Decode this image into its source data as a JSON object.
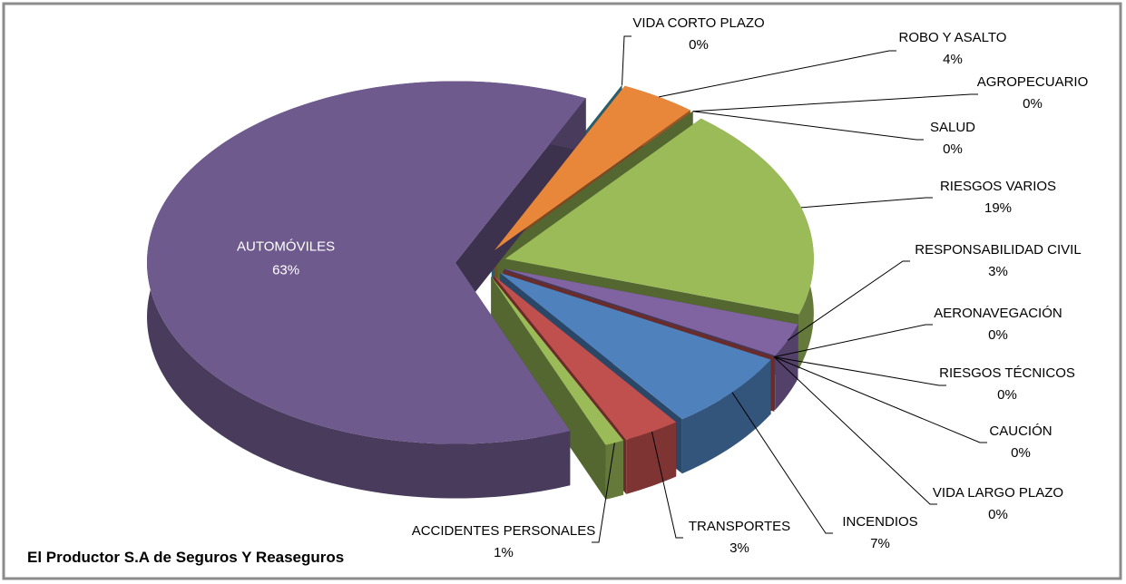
{
  "chart_data": {
    "type": "pie",
    "subtitle": "El Productor S.A de Seguros Y Reaseguros",
    "categories": [
      "VIDA CORTO PLAZO",
      "ROBO Y ASALTO",
      "AGROPECUARIO",
      "SALUD",
      "RIESGOS VARIOS",
      "RESPONSABILIDAD CIVIL",
      "AERONAVEGACIÓN",
      "RIESGOS TÉCNICOS",
      "CAUCIÓN",
      "VIDA LARGO PLAZO",
      "INCENDIOS",
      "TRANSPORTES",
      "ACCIDENTES PERSONALES",
      "AUTOMÓVILES"
    ],
    "values": [
      0,
      4,
      0,
      0,
      19,
      3,
      0,
      0,
      0,
      0,
      7,
      3,
      1,
      63
    ],
    "value_labels": [
      "0%",
      "4%",
      "0%",
      "0%",
      "19%",
      "3%",
      "0%",
      "0%",
      "0%",
      "0%",
      "7%",
      "3%",
      "1%",
      "63%"
    ],
    "colors": [
      "#4bacc6",
      "#e8863a",
      "#c0504d",
      "#9bbb59",
      "#9bbb59",
      "#8064a2",
      "#f79646",
      "#7f6354",
      "#4bacc6",
      "#c0504d",
      "#4f81bd",
      "#c0504d",
      "#9bbb59",
      "#6f5a8e"
    ]
  }
}
